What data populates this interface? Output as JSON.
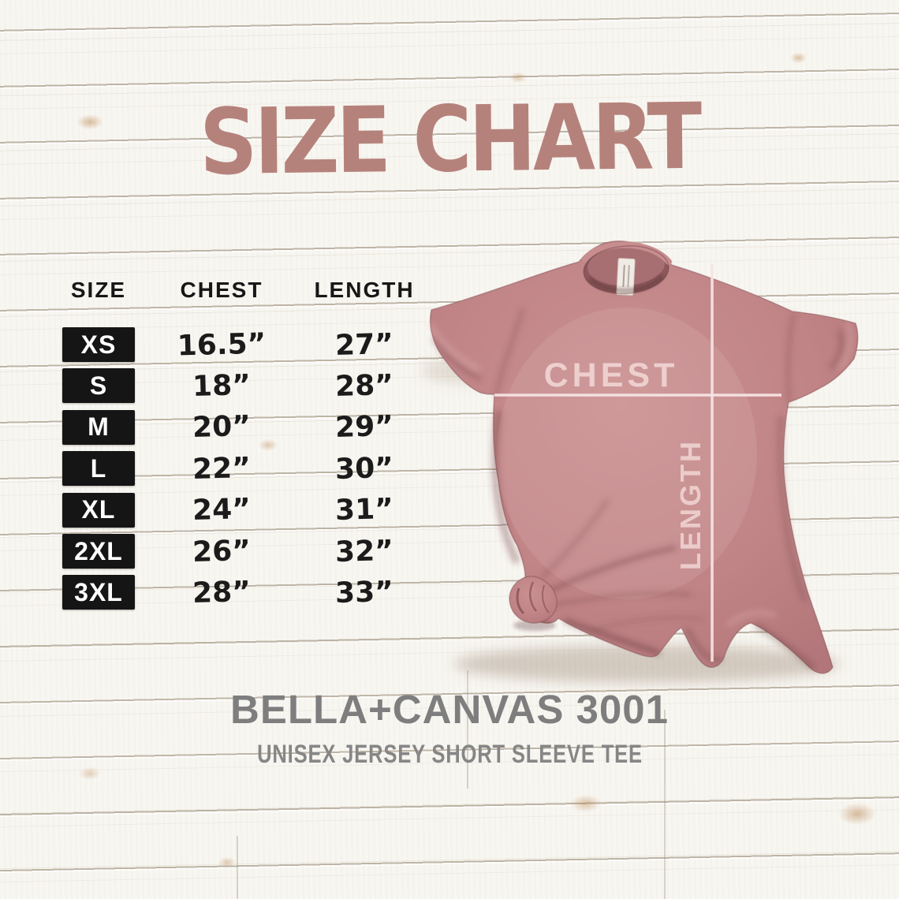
{
  "title": "SIZE CHART",
  "table": {
    "headers": [
      "SIZE",
      "CHEST",
      "LENGTH"
    ],
    "rows": [
      {
        "size": "XS",
        "chest": "16.5”",
        "length": "27”"
      },
      {
        "size": "S",
        "chest": "18”",
        "length": "28”"
      },
      {
        "size": "M",
        "chest": "20”",
        "length": "29”"
      },
      {
        "size": "L",
        "chest": "22”",
        "length": "30”"
      },
      {
        "size": "XL",
        "chest": "24”",
        "length": "31”"
      },
      {
        "size": "2XL",
        "chest": "26”",
        "length": "32”"
      },
      {
        "size": "3XL",
        "chest": "28”",
        "length": "33”"
      }
    ]
  },
  "shirt": {
    "chest_label": "CHEST",
    "length_label": "LENGTH",
    "color": "#c08486",
    "guide_line_color": "#f7e4e3",
    "label_color": "#f0d4d3"
  },
  "footer": {
    "brand": "BELLA+CANVAS 3001",
    "subtitle": "UNISEX JERSEY SHORT SLEEVE TEE"
  },
  "colors": {
    "title_text": "#b5827b",
    "header_text": "#171717",
    "value_text": "#1b1b1b",
    "size_box_bg": "#151515",
    "size_box_text": "#ffffff",
    "brand_text": "#7e7e7e",
    "subtitle_text": "#868686",
    "wood_base": "#f8f6f1",
    "wood_seam": "#8d7f69"
  },
  "chart_data": {
    "type": "table",
    "title": "SIZE CHART",
    "columns": [
      "SIZE",
      "CHEST",
      "LENGTH"
    ],
    "units": "inches",
    "rows": [
      {
        "size": "XS",
        "chest": 16.5,
        "length": 27
      },
      {
        "size": "S",
        "chest": 18,
        "length": 28
      },
      {
        "size": "M",
        "chest": 20,
        "length": 29
      },
      {
        "size": "L",
        "chest": 22,
        "length": 30
      },
      {
        "size": "XL",
        "chest": 24,
        "length": 31
      },
      {
        "size": "2XL",
        "chest": 26,
        "length": 32
      },
      {
        "size": "3XL",
        "chest": 28,
        "length": 33
      }
    ],
    "product": "BELLA+CANVAS 3001 UNISEX JERSEY SHORT SLEEVE TEE"
  }
}
